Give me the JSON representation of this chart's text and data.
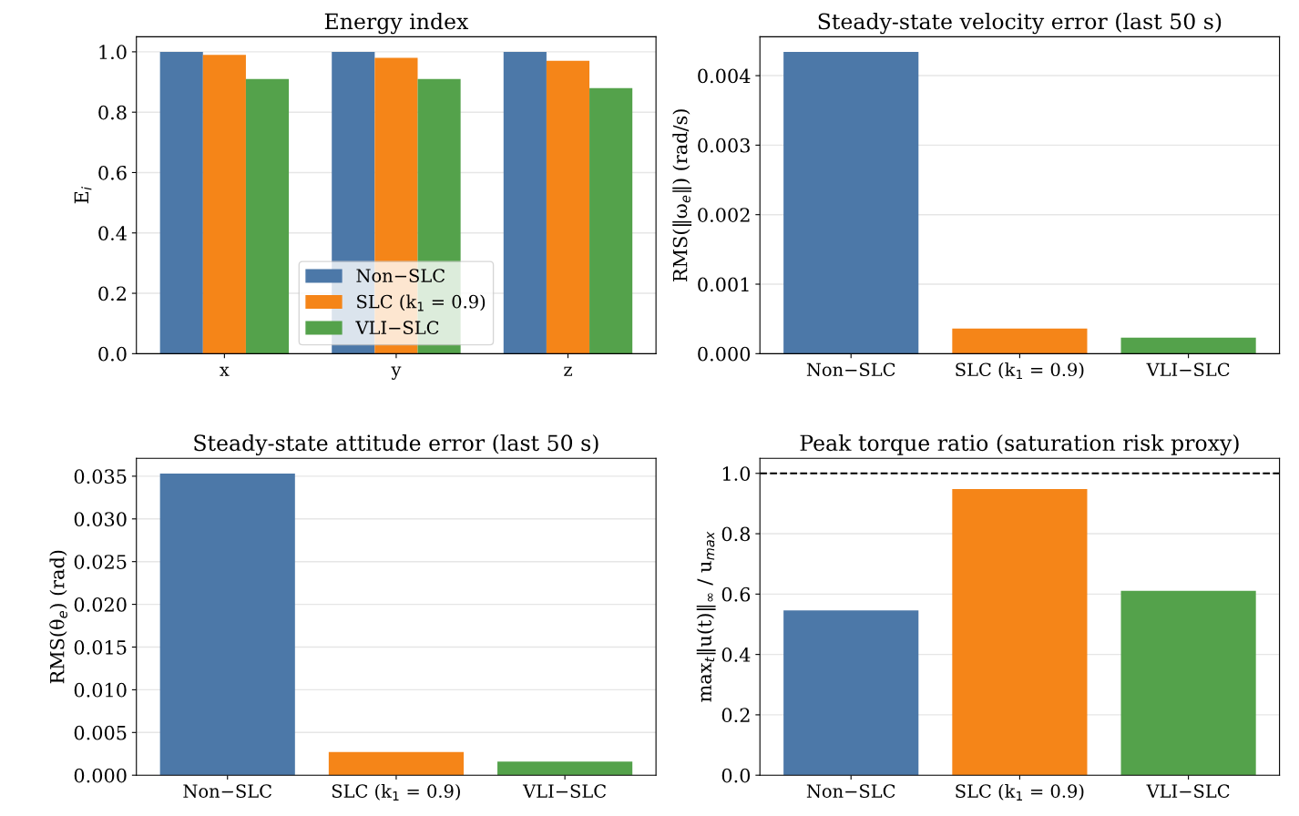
{
  "chart_data": [
    {
      "type": "bar",
      "title": "Energy index",
      "ylabel": "E$_{i}$",
      "categories": [
        "x",
        "y",
        "z"
      ],
      "series": [
        {
          "name": "Non−SLC",
          "color": "#4c78a8",
          "values": [
            1.0,
            1.0,
            1.0
          ]
        },
        {
          "name": "SLC (k$_{1}$ = 0.9)",
          "color": "#f58518",
          "values": [
            0.99,
            0.98,
            0.97
          ]
        },
        {
          "name": "VLI−SLC",
          "color": "#54a24b",
          "values": [
            0.91,
            0.91,
            0.88
          ]
        }
      ],
      "ylim": [
        0,
        1.05
      ],
      "yticks": [
        {
          "value": 0,
          "label": "0.0"
        },
        {
          "value": 0.2,
          "label": "0.2"
        },
        {
          "value": 0.4,
          "label": "0.4"
        },
        {
          "value": 0.6,
          "label": "0.6"
        },
        {
          "value": 0.8,
          "label": "0.8"
        },
        {
          "value": 1.0,
          "label": "1.0"
        }
      ],
      "grid": "y",
      "legend": "bottom"
    },
    {
      "type": "bar",
      "title": "Steady-state velocity error (last 50 s)",
      "ylabel": "RMS(‖ω$_{e}$‖) (rad/s)",
      "categories": [
        "Non−SLC",
        "SLC (k$_{1}$ = 0.9)",
        "VLI−SLC"
      ],
      "values": [
        0.00434,
        0.00036,
        0.00023
      ],
      "colors": [
        "#4c78a8",
        "#f58518",
        "#54a24b"
      ],
      "ylim": [
        0,
        0.00456
      ],
      "yticks": [
        {
          "value": 0,
          "label": "0.000"
        },
        {
          "value": 0.001,
          "label": "0.001"
        },
        {
          "value": 0.002,
          "label": "0.002"
        },
        {
          "value": 0.003,
          "label": "0.003"
        },
        {
          "value": 0.004,
          "label": "0.004"
        }
      ],
      "grid": "y"
    },
    {
      "type": "bar",
      "title": "Steady-state attitude error (last 50 s)",
      "ylabel": "RMS(θ$_{e}$) (rad)",
      "categories": [
        "Non−SLC",
        "SLC (k$_{1}$ = 0.9)",
        "VLI−SLC"
      ],
      "values": [
        0.0353,
        0.0027,
        0.0016
      ],
      "colors": [
        "#4c78a8",
        "#f58518",
        "#54a24b"
      ],
      "ylim": [
        0,
        0.0371
      ],
      "yticks": [
        {
          "value": 0,
          "label": "0.000"
        },
        {
          "value": 0.005,
          "label": "0.005"
        },
        {
          "value": 0.01,
          "label": "0.010"
        },
        {
          "value": 0.015,
          "label": "0.015"
        },
        {
          "value": 0.02,
          "label": "0.020"
        },
        {
          "value": 0.025,
          "label": "0.025"
        },
        {
          "value": 0.03,
          "label": "0.030"
        },
        {
          "value": 0.035,
          "label": "0.035"
        }
      ],
      "grid": "y"
    },
    {
      "type": "bar",
      "title": "Peak torque ratio (saturation risk proxy)",
      "ylabel": "max$_{t}$‖u(t)‖$_{∞}$ / u$_{max}$",
      "categories": [
        "Non−SLC",
        "SLC (k$_{1}$ = 0.9)",
        "VLI−SLC"
      ],
      "values": [
        0.546,
        0.948,
        0.611
      ],
      "colors": [
        "#4c78a8",
        "#f58518",
        "#54a24b"
      ],
      "ylim": [
        0,
        1.05
      ],
      "yticks": [
        {
          "value": 0,
          "label": "0.0"
        },
        {
          "value": 0.2,
          "label": "0.2"
        },
        {
          "value": 0.4,
          "label": "0.4"
        },
        {
          "value": 0.6,
          "label": "0.6"
        },
        {
          "value": 0.8,
          "label": "0.8"
        },
        {
          "value": 1.0,
          "label": "1.0"
        }
      ],
      "grid": "y",
      "ref_lines": [
        {
          "axis": "y",
          "value": 1.0,
          "color": "#000000",
          "line_style": "dashed"
        }
      ]
    }
  ]
}
